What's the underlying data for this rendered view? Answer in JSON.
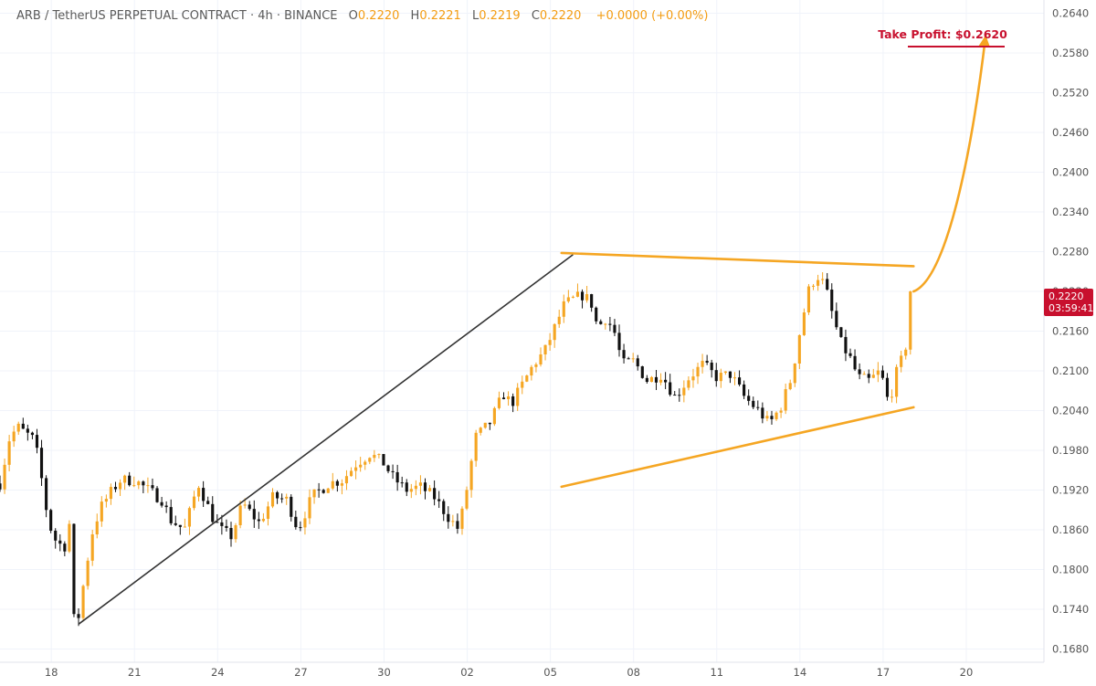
{
  "header": {
    "symbol": "ARB / TetherUS PERPETUAL CONTRACT · 4h · BINANCE",
    "o_label": "O",
    "o_value": "0.2220",
    "h_label": "H",
    "h_value": "0.2221",
    "l_label": "L",
    "l_value": "0.2219",
    "c_label": "C",
    "c_value": "0.2220",
    "change": "+0.0000 (+0.00%)"
  },
  "colors": {
    "up": "#f5a623",
    "down": "#111111",
    "pattern": "#f5a623",
    "trendline": "#333333",
    "target": "#c8102e",
    "grid": "#f0f3fa",
    "axis_text": "#555555"
  },
  "chart_data": {
    "type": "candlestick",
    "title": "ARB / TetherUS PERPETUAL CONTRACT · 4h · BINANCE",
    "x_ticks": [
      {
        "label": "18",
        "day": 0
      },
      {
        "label": "21",
        "day": 3
      },
      {
        "label": "24",
        "day": 6
      },
      {
        "label": "27",
        "day": 9
      },
      {
        "label": "30",
        "day": 12
      },
      {
        "label": "02",
        "day": 15
      },
      {
        "label": "05",
        "day": 18
      },
      {
        "label": "08",
        "day": 21
      },
      {
        "label": "11",
        "day": 24
      },
      {
        "label": "14",
        "day": 27
      },
      {
        "label": "17",
        "day": 30
      },
      {
        "label": "20",
        "day": 33
      }
    ],
    "x_range_days": [
      -1.85,
      35.8
    ],
    "y_range": [
      0.166,
      0.266
    ],
    "y_ticks": [
      "0.2640",
      "0.2580",
      "0.2520",
      "0.2460",
      "0.2400",
      "0.2340",
      "0.2280",
      "0.2220",
      "0.2160",
      "0.2100",
      "0.2040",
      "0.1980",
      "0.1920",
      "0.1860",
      "0.1800",
      "0.1740",
      "0.1680"
    ],
    "price_path": [
      [
        -1.85,
        0.193
      ],
      [
        -1.5,
        0.2
      ],
      [
        -1.2,
        0.2015
      ],
      [
        -0.6,
        0.1995
      ],
      [
        -0.4,
        0.195
      ],
      [
        -0.1,
        0.187
      ],
      [
        0.2,
        0.184
      ],
      [
        0.5,
        0.1835
      ],
      [
        0.7,
        0.188
      ],
      [
        0.8,
        0.1725
      ],
      [
        1.0,
        0.173
      ],
      [
        1.2,
        0.179
      ],
      [
        1.5,
        0.186
      ],
      [
        1.8,
        0.1895
      ],
      [
        2.2,
        0.192
      ],
      [
        2.5,
        0.1935
      ],
      [
        3.0,
        0.1935
      ],
      [
        3.5,
        0.192
      ],
      [
        4.0,
        0.1905
      ],
      [
        4.3,
        0.1875
      ],
      [
        4.8,
        0.186
      ],
      [
        5.3,
        0.193
      ],
      [
        5.8,
        0.188
      ],
      [
        6.1,
        0.186
      ],
      [
        6.5,
        0.185
      ],
      [
        6.9,
        0.19
      ],
      [
        7.5,
        0.187
      ],
      [
        8.0,
        0.191
      ],
      [
        8.5,
        0.1905
      ],
      [
        8.9,
        0.186
      ],
      [
        9.4,
        0.191
      ],
      [
        10.0,
        0.193
      ],
      [
        10.5,
        0.1935
      ],
      [
        11.0,
        0.196
      ],
      [
        11.5,
        0.1975
      ],
      [
        12.0,
        0.196
      ],
      [
        12.3,
        0.194
      ],
      [
        12.8,
        0.192
      ],
      [
        13.3,
        0.1925
      ],
      [
        13.8,
        0.191
      ],
      [
        14.3,
        0.188
      ],
      [
        14.7,
        0.186
      ],
      [
        15.0,
        0.1925
      ],
      [
        15.3,
        0.2
      ],
      [
        15.8,
        0.202
      ],
      [
        16.3,
        0.2065
      ],
      [
        16.6,
        0.205
      ],
      [
        17.0,
        0.208
      ],
      [
        17.4,
        0.211
      ],
      [
        17.8,
        0.213
      ],
      [
        18.2,
        0.217
      ],
      [
        18.5,
        0.22
      ],
      [
        18.9,
        0.221
      ],
      [
        19.2,
        0.2215
      ],
      [
        19.5,
        0.22
      ],
      [
        19.7,
        0.2165
      ],
      [
        20.0,
        0.218
      ],
      [
        20.3,
        0.216
      ],
      [
        20.6,
        0.211
      ],
      [
        21.0,
        0.2115
      ],
      [
        21.5,
        0.2085
      ],
      [
        22.0,
        0.2095
      ],
      [
        22.5,
        0.206
      ],
      [
        23.0,
        0.209
      ],
      [
        23.5,
        0.211
      ],
      [
        24.0,
        0.209
      ],
      [
        24.5,
        0.2095
      ],
      [
        25.0,
        0.206
      ],
      [
        25.5,
        0.204
      ],
      [
        25.9,
        0.202
      ],
      [
        26.3,
        0.2045
      ],
      [
        26.7,
        0.209
      ],
      [
        27.0,
        0.216
      ],
      [
        27.3,
        0.222
      ],
      [
        27.6,
        0.2245
      ],
      [
        27.9,
        0.223
      ],
      [
        28.2,
        0.218
      ],
      [
        28.5,
        0.214
      ],
      [
        28.8,
        0.212
      ],
      [
        29.1,
        0.209
      ],
      [
        29.5,
        0.2085
      ],
      [
        29.9,
        0.21
      ],
      [
        30.2,
        0.205
      ],
      [
        30.5,
        0.21
      ],
      [
        30.8,
        0.213
      ],
      [
        31.0,
        0.222
      ]
    ],
    "overlays": [
      {
        "name": "rising-trendline",
        "type": "line",
        "color": "#333333",
        "points": [
          [
            1.0,
            0.1718
          ],
          [
            18.8,
            0.2275
          ]
        ]
      },
      {
        "name": "wedge-upper-line",
        "type": "line",
        "color": "#f5a623",
        "points": [
          [
            18.4,
            0.2278
          ],
          [
            31.1,
            0.2258
          ]
        ]
      },
      {
        "name": "wedge-lower-line",
        "type": "line",
        "color": "#f5a623",
        "points": [
          [
            18.4,
            0.1925
          ],
          [
            31.1,
            0.2045
          ]
        ]
      },
      {
        "name": "projection-arrow",
        "type": "curve",
        "color": "#f5a623",
        "points": [
          [
            31.1,
            0.222
          ],
          [
            32.3,
            0.224
          ],
          [
            33.2,
            0.243
          ],
          [
            33.7,
            0.2607
          ]
        ]
      }
    ],
    "target": {
      "label": "Take Profit: $0.2620",
      "price": 0.262
    },
    "last_price": {
      "value": "0.2220",
      "countdown": "03:59:41"
    }
  }
}
